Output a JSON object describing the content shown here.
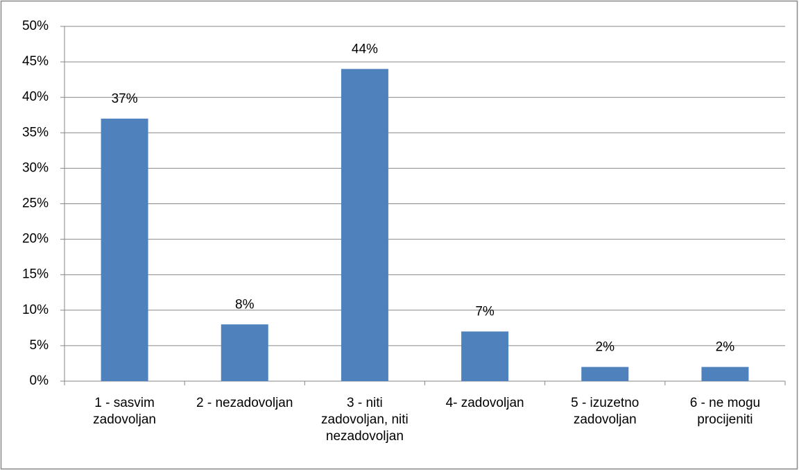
{
  "chart_data": {
    "type": "bar",
    "categories": [
      "1 - sasvim zadovoljan",
      "2 - nezadovoljan",
      "3 - niti zadovoljan, niti nezadovoljan",
      "4- zadovoljan",
      "5 - izuzetno zadovoljan",
      "6 - ne mogu procijeniti"
    ],
    "values": [
      37,
      8,
      44,
      7,
      2,
      2
    ],
    "value_labels": [
      "37%",
      "8%",
      "44%",
      "7%",
      "2%",
      "2%"
    ],
    "color": "#4f81bd",
    "ylim": [
      0,
      50
    ],
    "yticks": [
      {
        "value": 0,
        "label": "0%"
      },
      {
        "value": 5,
        "label": "5%"
      },
      {
        "value": 10,
        "label": "10%"
      },
      {
        "value": 15,
        "label": "15%"
      },
      {
        "value": 20,
        "label": "20%"
      },
      {
        "value": 25,
        "label": "25%"
      },
      {
        "value": 30,
        "label": "30%"
      },
      {
        "value": 35,
        "label": "35%"
      },
      {
        "value": 40,
        "label": "40%"
      },
      {
        "value": 45,
        "label": "45%"
      },
      {
        "value": 50,
        "label": "50%"
      }
    ],
    "grid": true
  }
}
